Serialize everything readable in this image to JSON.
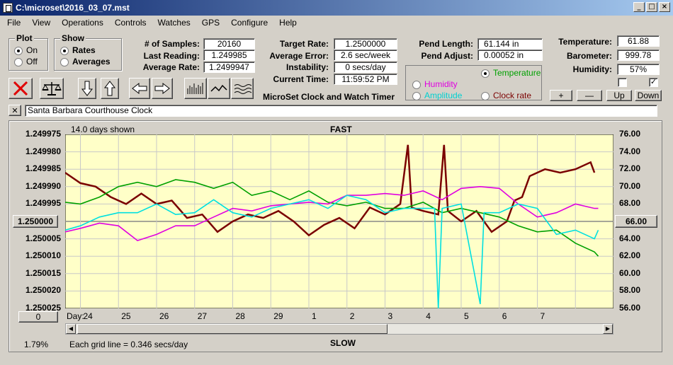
{
  "window": {
    "title": "C:\\microset\\2016_03_07.mst"
  },
  "menu": [
    "File",
    "View",
    "Operations",
    "Controls",
    "Watches",
    "GPS",
    "Configure",
    "Help"
  ],
  "plot_group": {
    "title": "Plot",
    "on": "On",
    "off": "Off",
    "selected": "On"
  },
  "show_group": {
    "title": "Show",
    "rates": "Rates",
    "averages": "Averages",
    "selected": "Rates"
  },
  "stats": {
    "samples_label": "# of Samples:",
    "samples": "20160",
    "last_reading_label": "Last Reading:",
    "last_reading": "1.249985",
    "avg_rate_label": "Average Rate:",
    "avg_rate": "1.2499947",
    "target_rate_label": "Target Rate:",
    "target_rate": "1.2500000",
    "avg_error_label": "Average Error:",
    "avg_error": "2.6 sec/week",
    "instability_label": "Instability:",
    "instability": "0 secs/day",
    "current_time_label": "Current Time:",
    "current_time": "11:59:52 PM",
    "pend_length_label": "Pend Length:",
    "pend_length": "61.144 in",
    "pend_adjust_label": "Pend Adjust:",
    "pend_adjust": "0.00052 in",
    "temperature_label": "Temperature:",
    "temperature": "61.88",
    "barometer_label": "Barometer:",
    "barometer": "999.78",
    "humidity_label": "Humidity:",
    "humidity": "57%"
  },
  "subtitle": "MicroSet Clock and Watch Timer",
  "sensor_select": {
    "temperature": "Temperature",
    "humidity": "Humidity",
    "amplitude": "Amplitude",
    "clock_rate": "Clock rate",
    "selected": "Temperature"
  },
  "scale_buttons": {
    "plus": "+",
    "minus": "—",
    "up": "Up",
    "down": "Down"
  },
  "checkbox_right": "✓",
  "clock_name": "Santa Barbara Courthouse Clock",
  "clear_label": "✕",
  "graph": {
    "days_shown": "14.0 days shown",
    "fast": "FAST",
    "slow": "SLOW",
    "center_left": "1.250000",
    "center_right": "66.00",
    "offset_btn": "0",
    "percent": "1.79%",
    "grid_note": "Each grid line = 0.346 secs/day",
    "day_label": "Day:"
  },
  "chart_data": {
    "type": "line",
    "x_ticks": [
      "24",
      "25",
      "26",
      "27",
      "28",
      "29",
      "1",
      "2",
      "3",
      "4",
      "5",
      "6",
      "7"
    ],
    "y_left_ticks": [
      "1.249975",
      "1.249980",
      "1.249985",
      "1.249990",
      "1.249995",
      "1.250000",
      "1.250005",
      "1.250010",
      "1.250015",
      "1.250020",
      "1.250025"
    ],
    "y_right_ticks": [
      "74.00",
      "72.00",
      "70.00",
      "68.00",
      "66.00",
      "64.00",
      "62.00",
      "60.00",
      "58.00",
      "56.00"
    ],
    "y_right_top": "76.00",
    "ylim_left": [
      1.249975,
      1.250025
    ],
    "ylim_right": [
      56,
      76
    ],
    "xlim": [
      23.6,
      38
    ],
    "grid": true,
    "series": [
      {
        "color": "#7a0000",
        "axis": "left",
        "points": [
          [
            23.6,
            1.249986
          ],
          [
            24.0,
            1.249989
          ],
          [
            24.4,
            1.24999
          ],
          [
            24.8,
            1.249993
          ],
          [
            25.2,
            1.249995
          ],
          [
            25.6,
            1.249992
          ],
          [
            26.0,
            1.249995
          ],
          [
            26.4,
            1.249994
          ],
          [
            26.8,
            1.249999
          ],
          [
            27.2,
            1.249998
          ],
          [
            27.6,
            1.250003
          ],
          [
            28.0,
            1.25
          ],
          [
            28.4,
            1.249998
          ],
          [
            28.8,
            1.249999
          ],
          [
            29.2,
            1.249997
          ],
          [
            29.6,
            1.25
          ],
          [
            30.0,
            1.250004
          ],
          [
            30.4,
            1.250001
          ],
          [
            30.8,
            1.249999
          ],
          [
            31.2,
            1.250002
          ],
          [
            31.6,
            1.249996
          ],
          [
            32.0,
            1.249998
          ],
          [
            32.4,
            1.249995
          ],
          [
            32.6,
            1.249978
          ],
          [
            32.7,
            1.249996
          ],
          [
            33.0,
            1.249997
          ],
          [
            33.4,
            1.249998
          ],
          [
            33.55,
            1.249978
          ],
          [
            33.65,
            1.249997
          ],
          [
            34.0,
            1.25
          ],
          [
            34.4,
            1.249997
          ],
          [
            34.8,
            1.250003
          ],
          [
            35.2,
            1.25
          ],
          [
            35.4,
            1.249994
          ],
          [
            35.6,
            1.249993
          ],
          [
            35.8,
            1.249987
          ],
          [
            36.2,
            1.249985
          ],
          [
            36.6,
            1.249986
          ],
          [
            37.0,
            1.249985
          ],
          [
            37.4,
            1.249983
          ],
          [
            37.5,
            1.249986
          ]
        ]
      },
      {
        "color": "#00a000",
        "axis": "right",
        "points": [
          [
            23.6,
            68.2
          ],
          [
            24.0,
            68.0
          ],
          [
            24.5,
            68.8
          ],
          [
            25.0,
            70.0
          ],
          [
            25.5,
            70.5
          ],
          [
            26.0,
            70.0
          ],
          [
            26.5,
            70.8
          ],
          [
            27.0,
            70.5
          ],
          [
            27.5,
            69.8
          ],
          [
            28.0,
            70.5
          ],
          [
            28.5,
            69.0
          ],
          [
            29.0,
            69.5
          ],
          [
            29.5,
            68.5
          ],
          [
            30.0,
            69.5
          ],
          [
            30.5,
            68.2
          ],
          [
            31.0,
            67.8
          ],
          [
            31.5,
            68.2
          ],
          [
            32.0,
            67.5
          ],
          [
            32.5,
            67.5
          ],
          [
            33.0,
            68.2
          ],
          [
            33.5,
            67.0
          ],
          [
            34.0,
            67.5
          ],
          [
            34.5,
            67.0
          ],
          [
            35.0,
            66.5
          ],
          [
            35.5,
            65.5
          ],
          [
            36.0,
            64.8
          ],
          [
            36.5,
            65.0
          ],
          [
            37.0,
            63.5
          ],
          [
            37.5,
            62.5
          ],
          [
            37.6,
            62.0
          ]
        ]
      },
      {
        "color": "#e000e0",
        "axis": "right",
        "points": [
          [
            23.6,
            64.8
          ],
          [
            24.0,
            65.2
          ],
          [
            24.5,
            65.8
          ],
          [
            25.0,
            65.5
          ],
          [
            25.5,
            63.8
          ],
          [
            26.0,
            64.5
          ],
          [
            26.5,
            65.5
          ],
          [
            27.0,
            65.5
          ],
          [
            27.5,
            66.5
          ],
          [
            28.0,
            67.5
          ],
          [
            28.5,
            67.2
          ],
          [
            29.0,
            67.8
          ],
          [
            29.5,
            68.0
          ],
          [
            30.0,
            68.2
          ],
          [
            30.5,
            68.0
          ],
          [
            31.0,
            69.0
          ],
          [
            31.5,
            69.0
          ],
          [
            32.0,
            69.2
          ],
          [
            32.5,
            69.0
          ],
          [
            33.0,
            69.5
          ],
          [
            33.5,
            68.5
          ],
          [
            34.0,
            69.8
          ],
          [
            34.5,
            70.0
          ],
          [
            35.0,
            69.8
          ],
          [
            35.5,
            68.0
          ],
          [
            36.0,
            66.5
          ],
          [
            36.5,
            67.0
          ],
          [
            37.0,
            68.0
          ],
          [
            37.5,
            67.5
          ],
          [
            37.6,
            67.5
          ]
        ]
      },
      {
        "color": "#00e0e0",
        "axis": "right",
        "points": [
          [
            23.6,
            65.0
          ],
          [
            24.0,
            65.5
          ],
          [
            24.5,
            66.5
          ],
          [
            25.0,
            67.0
          ],
          [
            25.5,
            67.0
          ],
          [
            26.0,
            68.0
          ],
          [
            26.5,
            66.8
          ],
          [
            27.0,
            67.0
          ],
          [
            27.5,
            68.5
          ],
          [
            28.0,
            67.0
          ],
          [
            28.5,
            66.5
          ],
          [
            29.0,
            67.5
          ],
          [
            29.5,
            68.0
          ],
          [
            30.0,
            68.5
          ],
          [
            30.5,
            67.5
          ],
          [
            31.0,
            69.0
          ],
          [
            31.5,
            68.5
          ],
          [
            32.0,
            67.0
          ],
          [
            32.5,
            67.5
          ],
          [
            33.0,
            67.5
          ],
          [
            33.3,
            67.5
          ],
          [
            33.4,
            56.0
          ],
          [
            33.5,
            67.5
          ],
          [
            34.0,
            68.0
          ],
          [
            34.5,
            56.5
          ],
          [
            34.6,
            67.0
          ],
          [
            35.0,
            67.0
          ],
          [
            35.5,
            68.0
          ],
          [
            36.0,
            67.5
          ],
          [
            36.5,
            64.5
          ],
          [
            37.0,
            65.0
          ],
          [
            37.5,
            64.0
          ],
          [
            37.6,
            65.0
          ]
        ]
      }
    ]
  }
}
